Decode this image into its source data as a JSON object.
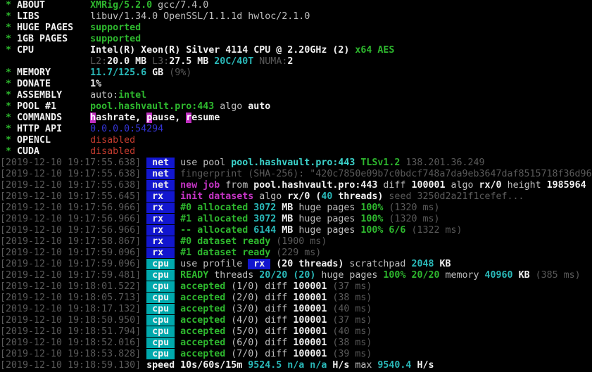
{
  "app": {
    "name": "XMRig miner terminal output",
    "version_line": "XMRig/5.2.0 gcc/7.4.0"
  },
  "palette": {
    "background": "#000000",
    "white": "#bfbfbf",
    "bright_white": "#f0f0f0",
    "gray": "#5a5a5a",
    "green": "#2eb82e",
    "cyan": "#2ab9b9",
    "bright_cyan": "#3bd3cb",
    "blue": "#3434d4",
    "magenta": "#c434c4",
    "red": "#c33b2e",
    "badge_blue_bg": "#1216cf",
    "badge_teal_bg": "#00a9ad",
    "badge_magenta_bg": "#bf2ebf"
  },
  "lines": [
    {
      "segments": [
        {
          "c": "gn",
          "t": " * "
        },
        {
          "c": "wb",
          "t": "ABOUT        "
        },
        {
          "c": "gn",
          "t": "XMRig/5.2.0"
        },
        {
          "c": "w",
          "t": " gcc/7.4.0"
        }
      ]
    },
    {
      "segments": [
        {
          "c": "gn",
          "t": " * "
        },
        {
          "c": "wb",
          "t": "LIBS         "
        },
        {
          "c": "w",
          "t": "libuv/1.34.0 OpenSSL/1.1.1d hwloc/2.1.0"
        }
      ]
    },
    {
      "segments": [
        {
          "c": "gn",
          "t": " * "
        },
        {
          "c": "wb",
          "t": "HUGE PAGES   "
        },
        {
          "c": "gn",
          "t": "supported"
        }
      ]
    },
    {
      "segments": [
        {
          "c": "gn",
          "t": " * "
        },
        {
          "c": "wb",
          "t": "1GB PAGES    "
        },
        {
          "c": "gn",
          "t": "supported"
        }
      ]
    },
    {
      "segments": [
        {
          "c": "gn",
          "t": " * "
        },
        {
          "c": "wb",
          "t": "CPU          "
        },
        {
          "c": "wb",
          "t": "Intel(R) Xeon(R) Silver 4114 CPU @ 2.20GHz (2) "
        },
        {
          "c": "gn",
          "t": "x64 AES"
        }
      ]
    },
    {
      "segments": [
        {
          "c": "w",
          "t": "                "
        },
        {
          "c": "g",
          "t": "L2:"
        },
        {
          "c": "wb",
          "t": "20.0 MB "
        },
        {
          "c": "g",
          "t": "L3:"
        },
        {
          "c": "wb",
          "t": "27.5 MB "
        },
        {
          "c": "cy",
          "t": "20C/40T "
        },
        {
          "c": "g",
          "t": "NUMA:"
        },
        {
          "c": "wb",
          "t": "2"
        }
      ]
    },
    {
      "segments": [
        {
          "c": "gn",
          "t": " * "
        },
        {
          "c": "wb",
          "t": "MEMORY       "
        },
        {
          "c": "cy",
          "t": "11.7/125.6"
        },
        {
          "c": "wb",
          "t": " GB"
        },
        {
          "c": "g",
          "t": " (9%)"
        }
      ]
    },
    {
      "segments": [
        {
          "c": "gn",
          "t": " * "
        },
        {
          "c": "wb",
          "t": "DONATE       "
        },
        {
          "c": "wb",
          "t": "1%"
        }
      ]
    },
    {
      "segments": [
        {
          "c": "gn",
          "t": " * "
        },
        {
          "c": "wb",
          "t": "ASSEMBLY     "
        },
        {
          "c": "w",
          "t": "auto:"
        },
        {
          "c": "gn",
          "t": "intel"
        }
      ]
    },
    {
      "segments": [
        {
          "c": "gn",
          "t": " * "
        },
        {
          "c": "wb",
          "t": "POOL #1      "
        },
        {
          "c": "gn",
          "t": "pool.hashvault.pro:443"
        },
        {
          "c": "w",
          "t": " algo "
        },
        {
          "c": "wb",
          "t": "auto"
        }
      ]
    },
    {
      "segments": [
        {
          "c": "gn",
          "t": " * "
        },
        {
          "c": "wb",
          "t": "COMMANDS     "
        },
        {
          "c": "mgbg",
          "t": "h",
          "n": "hashrate-hotkey"
        },
        {
          "c": "wb",
          "t": "ashrate, "
        },
        {
          "c": "mgbg",
          "t": "p",
          "n": "pause-hotkey"
        },
        {
          "c": "wb",
          "t": "ause, "
        },
        {
          "c": "mgbg",
          "t": "r",
          "n": "resume-hotkey"
        },
        {
          "c": "wb",
          "t": "esume"
        }
      ]
    },
    {
      "segments": [
        {
          "c": "gn",
          "t": " * "
        },
        {
          "c": "wb",
          "t": "HTTP API     "
        },
        {
          "c": "bl",
          "t": "0.0.0.0:54294"
        }
      ]
    },
    {
      "segments": [
        {
          "c": "gn",
          "t": " * "
        },
        {
          "c": "wb",
          "t": "OPENCL       "
        },
        {
          "c": "rd",
          "t": "disabled"
        }
      ]
    },
    {
      "segments": [
        {
          "c": "gn",
          "t": " * "
        },
        {
          "c": "wb",
          "t": "CUDA         "
        },
        {
          "c": "rd",
          "t": "disabled"
        }
      ]
    },
    {
      "segments": [
        {
          "c": "g",
          "t": "[2019-12-10 19:17:55.638] "
        },
        {
          "c": "tagblue",
          "t": " net ",
          "n": "net-tag"
        },
        {
          "c": "w",
          "t": " use pool "
        },
        {
          "c": "cyb",
          "t": "pool.hashvault.pro:443"
        },
        {
          "c": "gn",
          "t": " TLSv1.2"
        },
        {
          "c": "g",
          "t": " 138.201.36.249"
        }
      ]
    },
    {
      "segments": [
        {
          "c": "g",
          "t": "[2019-12-10 19:17:55.638] "
        },
        {
          "c": "tagblue",
          "t": " net ",
          "n": "net-tag"
        },
        {
          "c": "g",
          "t": " fingerprint (SHA-256): \"420c7850e09b7c0bdcf748a7da9eb3647daf8515718f36d96"
        }
      ]
    },
    {
      "segments": [
        {
          "c": "g",
          "t": "[2019-12-10 19:17:55.638] "
        },
        {
          "c": "tagblue",
          "t": " net ",
          "n": "net-tag"
        },
        {
          "c": "mg",
          "t": " new job"
        },
        {
          "c": "w",
          "t": " from "
        },
        {
          "c": "wb",
          "t": "pool.hashvault.pro:443"
        },
        {
          "c": "w",
          "t": " diff "
        },
        {
          "c": "wb",
          "t": "100001"
        },
        {
          "c": "w",
          "t": " algo "
        },
        {
          "c": "wb",
          "t": "rx/0"
        },
        {
          "c": "w",
          "t": " height "
        },
        {
          "c": "wb",
          "t": "1985964"
        }
      ]
    },
    {
      "segments": [
        {
          "c": "g",
          "t": "[2019-12-10 19:17:55.645] "
        },
        {
          "c": "tagblue",
          "t": " rx  ",
          "n": "rx-tag"
        },
        {
          "c": "mg",
          "t": " init datasets"
        },
        {
          "c": "w",
          "t": " algo "
        },
        {
          "c": "wb",
          "t": "rx/0 ("
        },
        {
          "c": "cy",
          "t": "40"
        },
        {
          "c": "wb",
          "t": " threads)"
        },
        {
          "c": "g",
          "t": " seed 3250d2a21f1cefef..."
        }
      ]
    },
    {
      "segments": [
        {
          "c": "g",
          "t": "[2019-12-10 19:17:56.966] "
        },
        {
          "c": "tagblue",
          "t": " rx  ",
          "n": "rx-tag"
        },
        {
          "c": "gn",
          "t": " #0 allocated"
        },
        {
          "c": "cy",
          "t": " 3072"
        },
        {
          "c": "wb",
          "t": " MB"
        },
        {
          "c": "w",
          "t": " huge pages "
        },
        {
          "c": "gn",
          "t": "100%"
        },
        {
          "c": "g",
          "t": " (1320 ms)"
        }
      ]
    },
    {
      "segments": [
        {
          "c": "g",
          "t": "[2019-12-10 19:17:56.966] "
        },
        {
          "c": "tagblue",
          "t": " rx  ",
          "n": "rx-tag"
        },
        {
          "c": "gn",
          "t": " #1 allocated"
        },
        {
          "c": "cy",
          "t": " 3072"
        },
        {
          "c": "wb",
          "t": " MB"
        },
        {
          "c": "w",
          "t": " huge pages "
        },
        {
          "c": "gn",
          "t": "100%"
        },
        {
          "c": "g",
          "t": " (1320 ms)"
        }
      ]
    },
    {
      "segments": [
        {
          "c": "g",
          "t": "[2019-12-10 19:17:56.966] "
        },
        {
          "c": "tagblue",
          "t": " rx  ",
          "n": "rx-tag"
        },
        {
          "c": "gn",
          "t": " -- allocated"
        },
        {
          "c": "cy",
          "t": " 6144"
        },
        {
          "c": "wb",
          "t": " MB"
        },
        {
          "c": "w",
          "t": " huge pages "
        },
        {
          "c": "gn",
          "t": "100% 6/6"
        },
        {
          "c": "g",
          "t": " (1322 ms)"
        }
      ]
    },
    {
      "segments": [
        {
          "c": "g",
          "t": "[2019-12-10 19:17:58.867] "
        },
        {
          "c": "tagblue",
          "t": " rx  ",
          "n": "rx-tag"
        },
        {
          "c": "gn",
          "t": " #0 dataset ready"
        },
        {
          "c": "g",
          "t": " (1900 ms)"
        }
      ]
    },
    {
      "segments": [
        {
          "c": "g",
          "t": "[2019-12-10 19:17:59.096] "
        },
        {
          "c": "tagblue",
          "t": " rx  ",
          "n": "rx-tag"
        },
        {
          "c": "gn",
          "t": " #1 dataset ready"
        },
        {
          "c": "g",
          "t": " (229 ms)"
        }
      ]
    },
    {
      "segments": [
        {
          "c": "g",
          "t": "[2019-12-10 19:17:59.096] "
        },
        {
          "c": "tagteal",
          "t": " cpu ",
          "n": "cpu-tag"
        },
        {
          "c": "w",
          "t": " use profile "
        },
        {
          "c": "tagblue",
          "t": " rx ",
          "n": "rx-profile-badge"
        },
        {
          "c": "wb",
          "t": " (20 threads)"
        },
        {
          "c": "w",
          "t": " scratchpad "
        },
        {
          "c": "cy",
          "t": "2048"
        },
        {
          "c": "wb",
          "t": " KB"
        }
      ]
    },
    {
      "segments": [
        {
          "c": "g",
          "t": "[2019-12-10 19:17:59.481] "
        },
        {
          "c": "tagteal",
          "t": " cpu ",
          "n": "cpu-tag"
        },
        {
          "c": "gn",
          "t": " READY"
        },
        {
          "c": "w",
          "t": " threads "
        },
        {
          "c": "cy",
          "t": "20/20 (20)"
        },
        {
          "c": "w",
          "t": " huge pages "
        },
        {
          "c": "gn",
          "t": "100% 20/20"
        },
        {
          "c": "w",
          "t": " memory "
        },
        {
          "c": "cy",
          "t": "40960"
        },
        {
          "c": "wb",
          "t": " KB"
        },
        {
          "c": "g",
          "t": " (385 ms)"
        }
      ]
    },
    {
      "segments": [
        {
          "c": "g",
          "t": "[2019-12-10 19:18:01.522] "
        },
        {
          "c": "tagteal",
          "t": " cpu ",
          "n": "cpu-tag"
        },
        {
          "c": "gn",
          "t": " accepted"
        },
        {
          "c": "w",
          "t": " (1/0) diff "
        },
        {
          "c": "wb",
          "t": "100001"
        },
        {
          "c": "g",
          "t": " (37 ms)"
        }
      ]
    },
    {
      "segments": [
        {
          "c": "g",
          "t": "[2019-12-10 19:18:05.713] "
        },
        {
          "c": "tagteal",
          "t": " cpu ",
          "n": "cpu-tag"
        },
        {
          "c": "gn",
          "t": " accepted"
        },
        {
          "c": "w",
          "t": " (2/0) diff "
        },
        {
          "c": "wb",
          "t": "100001"
        },
        {
          "c": "g",
          "t": " (38 ms)"
        }
      ]
    },
    {
      "segments": [
        {
          "c": "g",
          "t": "[2019-12-10 19:18:17.132] "
        },
        {
          "c": "tagteal",
          "t": " cpu ",
          "n": "cpu-tag"
        },
        {
          "c": "gn",
          "t": " accepted"
        },
        {
          "c": "w",
          "t": " (3/0) diff "
        },
        {
          "c": "wb",
          "t": "100001"
        },
        {
          "c": "g",
          "t": " (40 ms)"
        }
      ]
    },
    {
      "segments": [
        {
          "c": "g",
          "t": "[2019-12-10 19:18:50.950] "
        },
        {
          "c": "tagteal",
          "t": " cpu ",
          "n": "cpu-tag"
        },
        {
          "c": "gn",
          "t": " accepted"
        },
        {
          "c": "w",
          "t": " (4/0) diff "
        },
        {
          "c": "wb",
          "t": "100001"
        },
        {
          "c": "g",
          "t": " (37 ms)"
        }
      ]
    },
    {
      "segments": [
        {
          "c": "g",
          "t": "[2019-12-10 19:18:51.794] "
        },
        {
          "c": "tagteal",
          "t": " cpu ",
          "n": "cpu-tag"
        },
        {
          "c": "gn",
          "t": " accepted"
        },
        {
          "c": "w",
          "t": " (5/0) diff "
        },
        {
          "c": "wb",
          "t": "100001"
        },
        {
          "c": "g",
          "t": " (40 ms)"
        }
      ]
    },
    {
      "segments": [
        {
          "c": "g",
          "t": "[2019-12-10 19:18:52.016] "
        },
        {
          "c": "tagteal",
          "t": " cpu ",
          "n": "cpu-tag"
        },
        {
          "c": "gn",
          "t": " accepted"
        },
        {
          "c": "w",
          "t": " (6/0) diff "
        },
        {
          "c": "wb",
          "t": "100001"
        },
        {
          "c": "g",
          "t": " (38 ms)"
        }
      ]
    },
    {
      "segments": [
        {
          "c": "g",
          "t": "[2019-12-10 19:18:53.828] "
        },
        {
          "c": "tagteal",
          "t": " cpu ",
          "n": "cpu-tag"
        },
        {
          "c": "gn",
          "t": " accepted"
        },
        {
          "c": "w",
          "t": " (7/0) diff "
        },
        {
          "c": "wb",
          "t": "100001"
        },
        {
          "c": "g",
          "t": " (39 ms)"
        }
      ]
    },
    {
      "segments": [
        {
          "c": "g",
          "t": "[2019-12-10 19:18:59.130]"
        },
        {
          "c": "wb",
          "t": " speed 10s/60s/15m "
        },
        {
          "c": "cy",
          "t": "9524.5 n/a n/a"
        },
        {
          "c": "wb",
          "t": " H/s"
        },
        {
          "c": "w",
          "t": " max "
        },
        {
          "c": "cy",
          "t": "9540.4"
        },
        {
          "c": "wb",
          "t": " H/s"
        }
      ]
    }
  ]
}
